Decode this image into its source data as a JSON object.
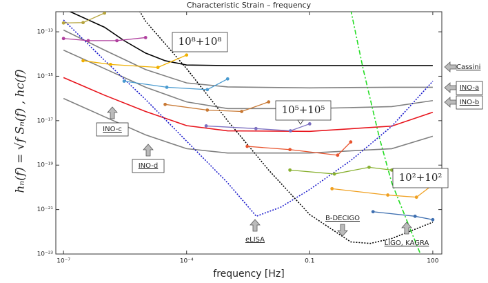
{
  "chart_data": {
    "type": "line",
    "title": "Characteristic Strain – frequency",
    "xlabel": "frequency [Hz]",
    "ylabel": "hₙ(f) = √f Sₙ(f) ,    hc(f)",
    "xscale": "log",
    "yscale": "log",
    "xlim": [
      6.5e-08,
      166
    ],
    "ylim": [
      1e-23,
      8e-13
    ],
    "xticks": [
      {
        "value": 1e-07,
        "label": "10⁻⁷"
      },
      {
        "value": 0.0001,
        "label": "10⁻⁴"
      },
      0.1,
      100
    ],
    "yticks": [
      {
        "value": 1e-13,
        "label": "10⁻¹³"
      },
      {
        "value": 1e-15,
        "label": "10⁻¹⁵"
      },
      {
        "value": 1e-17,
        "label": "10⁻¹⁷"
      },
      {
        "value": 1e-19,
        "label": "10⁻¹⁹"
      },
      {
        "value": 1e-21,
        "label": "10⁻²¹"
      },
      {
        "value": 1e-23,
        "label": "10⁻²³"
      }
    ],
    "annotations": [
      "10⁸+10⁸",
      "10⁵+10⁵",
      "10²+10²"
    ],
    "series": [
      {
        "name": "Cassini",
        "color": "#000000",
        "style": "solid",
        "x": [
          1e-07,
          1e-06,
          3e-06,
          1e-05,
          3e-05,
          0.0001,
          0.001,
          0.01,
          1,
          100
        ],
        "values": [
          1.1e-12,
          1.6e-13,
          4e-14,
          1.1e-14,
          5e-15,
          3.2e-15,
          3e-15,
          3e-15,
          3e-15,
          3e-15
        ]
      },
      {
        "name": "INO-a",
        "color": "#808080",
        "style": "solid",
        "x": [
          1e-07,
          1e-06,
          1e-05,
          0.0001,
          0.001,
          0.1,
          10,
          100
        ],
        "values": [
          1.2e-13,
          1.5e-14,
          2e-15,
          5e-16,
          3.3e-16,
          3e-16,
          3.2e-16,
          3.2e-16
        ]
      },
      {
        "name": "INO-b",
        "color": "#808080",
        "style": "solid",
        "x": [
          1e-07,
          1e-06,
          1e-05,
          0.0001,
          0.001,
          0.1,
          10,
          100
        ],
        "values": [
          1.5e-14,
          2.2e-15,
          3.2e-16,
          7e-17,
          3.5e-17,
          3.5e-17,
          4.3e-17,
          8e-17
        ]
      },
      {
        "name": "INO-c",
        "color": "#e8141c",
        "style": "solid",
        "x": [
          1e-07,
          1e-06,
          1e-05,
          0.0001,
          0.001,
          0.1,
          10,
          100
        ],
        "values": [
          8.7e-16,
          1.4e-16,
          2.6e-17,
          6e-18,
          3.5e-18,
          3.3e-18,
          5.7e-18,
          2.4e-17
        ]
      },
      {
        "name": "INO-d",
        "color": "#808080",
        "style": "solid",
        "x": [
          1e-07,
          1e-06,
          1e-05,
          0.0001,
          0.001,
          0.1,
          10,
          100
        ],
        "values": [
          1e-16,
          1.5e-17,
          2.3e-18,
          5.5e-19,
          3.5e-19,
          3.5e-19,
          5.5e-19,
          2e-18
        ]
      },
      {
        "name": "eLISA",
        "color": "#1a1acc",
        "style": "dotted",
        "x": [
          1e-07,
          1e-06,
          1e-05,
          0.0001,
          0.001,
          0.005,
          0.02,
          0.1,
          1,
          10,
          100
        ],
        "values": [
          3.4e-13,
          5.2e-15,
          9e-17,
          1.2e-18,
          1.6e-20,
          5e-22,
          1.3e-21,
          8e-21,
          1.6e-19,
          5.6e-18,
          6e-16
        ]
      },
      {
        "name": "B-DECIGO",
        "color": "#000000",
        "style": "dotted",
        "x": [
          6.6e-06,
          1e-05,
          0.0001,
          0.001,
          0.01,
          0.1,
          1,
          3,
          10,
          100
        ],
        "values": [
          1.1e-12,
          3e-13,
          2.2e-15,
          1e-17,
          6e-20,
          6e-22,
          3.5e-23,
          3e-23,
          5e-23,
          2.7e-22
        ]
      },
      {
        "name": "LIGO, KAGRA",
        "color": "#22dd22",
        "style": "dashdot",
        "x": [
          1,
          2,
          5,
          10,
          30,
          50
        ],
        "values": [
          1e-12,
          2.2e-15,
          1.7e-18,
          1.6e-20,
          1e-22,
          1e-23
        ]
      },
      {
        "color": "#b5a33c",
        "style": "solid",
        "markers": true,
        "x": [
          1e-07,
          3e-07,
          1e-06
        ],
        "values": [
          2.5e-13,
          2.6e-13,
          7e-13
        ]
      },
      {
        "color": "#b0409f",
        "style": "solid",
        "markers": true,
        "x": [
          1e-07,
          4e-07,
          2e-06,
          1e-05
        ],
        "values": [
          5e-14,
          4e-14,
          4e-14,
          5.5e-14
        ]
      },
      {
        "color": "#f0b000",
        "style": "solid",
        "markers": true,
        "x": [
          3e-07,
          1.4e-06,
          2e-05,
          0.0001
        ],
        "values": [
          5e-15,
          3.4e-15,
          2.5e-15,
          9e-15
        ]
      },
      {
        "color": "#4a9bd0",
        "style": "solid",
        "markers": true,
        "x": [
          3e-06,
          3.3e-05,
          0.00032,
          0.001
        ],
        "values": [
          6e-16,
          3.2e-16,
          2.5e-16,
          7.6e-16
        ]
      },
      {
        "color": "#c87833",
        "style": "solid",
        "markers": true,
        "x": [
          3e-05,
          0.00032,
          0.0022,
          0.01
        ],
        "values": [
          5.4e-17,
          3e-17,
          2.6e-17,
          7e-17
        ]
      },
      {
        "color": "#7b6fc0",
        "style": "solid",
        "markers": true,
        "x": [
          0.0003,
          0.0049,
          0.034,
          0.1
        ],
        "values": [
          5.8e-18,
          4.4e-18,
          3.5e-18,
          7.2e-18
        ]
      },
      {
        "color": "#e8542e",
        "style": "solid",
        "markers": true,
        "x": [
          0.003,
          0.033,
          0.48,
          1
        ],
        "values": [
          7e-19,
          5e-19,
          2.8e-19,
          1.1e-18
        ]
      },
      {
        "color": "#88b030",
        "style": "solid",
        "markers": true,
        "x": [
          0.033,
          0.4,
          2.8,
          10
        ],
        "values": [
          6e-20,
          4e-20,
          8e-20,
          6e-20
        ]
      },
      {
        "color": "#f0a020",
        "style": "solid",
        "markers": true,
        "x": [
          0.35,
          8,
          40,
          100
        ],
        "values": [
          8.7e-21,
          4.5e-21,
          3.6e-21,
          1.3e-20
        ]
      },
      {
        "color": "#3e6fb0",
        "style": "solid",
        "markers": true,
        "x": [
          3.5,
          37,
          100
        ],
        "values": [
          8e-22,
          5e-22,
          3.5e-22
        ]
      }
    ]
  }
}
